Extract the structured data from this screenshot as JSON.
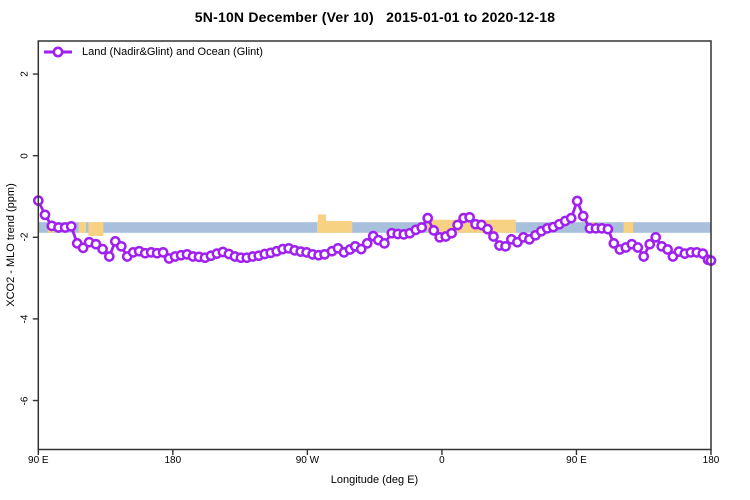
{
  "chart_data": {
    "type": "line",
    "title": "5N-10N December (Ver 10)   2015-01-01 to 2020-12-18",
    "xlabel": "Longitude (deg E)",
    "ylabel": "XCO2 - MLO trend (ppm)",
    "xlim": [
      90,
      540
    ],
    "ylim": [
      -7.2,
      2.81
    ],
    "grid": false,
    "legend_position": "top-left-inside",
    "x_ticks": [
      {
        "x": 90,
        "label": "90 E"
      },
      {
        "x": 180,
        "label": "180"
      },
      {
        "x": 270,
        "label": "90 W"
      },
      {
        "x": 360,
        "label": "0"
      },
      {
        "x": 450,
        "label": "90 E"
      },
      {
        "x": 540,
        "label": "180"
      }
    ],
    "y_ticks": [
      {
        "y": 2,
        "label": "2"
      },
      {
        "y": 0,
        "label": "0"
      },
      {
        "y": -2,
        "label": "-2"
      },
      {
        "y": -4,
        "label": "-4"
      },
      {
        "y": -6,
        "label": "-6"
      }
    ],
    "legend": [
      {
        "label": "Land (Nadir&Glint) and Ocean (Glint)",
        "color": "#A020F0",
        "marker": "open-circle-on-line"
      }
    ],
    "map_band": {
      "description": "ocean/land strip for 5N-10N latitude band",
      "ocean_color": "#A9C0DC",
      "land_color": "#F8D283",
      "y_top": -1.63,
      "y_bottom": -1.89,
      "land_segments": [
        {
          "from": 96.5,
          "to": 100.5
        },
        {
          "from": 117,
          "to": 122
        },
        {
          "from": 123.5,
          "to": 133.5,
          "bottom": -1.97
        },
        {
          "from": 276.5,
          "to": 300,
          "top": -1.6
        },
        {
          "from": 277,
          "to": 282.5,
          "top": -1.44
        },
        {
          "from": 350,
          "to": 409.5,
          "top": -1.57
        },
        {
          "from": 460,
          "to": 462.5
        },
        {
          "from": 481.5,
          "to": 488
        }
      ]
    },
    "series": [
      {
        "name": "Land (Nadir&Glint) and Ocean (Glint)",
        "color": "#A020F0",
        "marker_fill": "#FFFFFF",
        "points": [
          [
            90,
            -1.1
          ],
          [
            94.5,
            -1.45
          ],
          [
            99,
            -1.72
          ],
          [
            103.5,
            -1.76
          ],
          [
            108,
            -1.76
          ],
          [
            112,
            -1.73
          ],
          [
            116,
            -2.15
          ],
          [
            120,
            -2.26
          ],
          [
            124,
            -2.12
          ],
          [
            128.5,
            -2.17
          ],
          [
            133,
            -2.29
          ],
          [
            137.5,
            -2.47
          ],
          [
            141.5,
            -2.1
          ],
          [
            145.5,
            -2.22
          ],
          [
            149.5,
            -2.47
          ],
          [
            153.5,
            -2.37
          ],
          [
            157.5,
            -2.34
          ],
          [
            161.5,
            -2.39
          ],
          [
            165.5,
            -2.37
          ],
          [
            169.5,
            -2.39
          ],
          [
            173.5,
            -2.37
          ],
          [
            177.5,
            -2.52
          ],
          [
            181.5,
            -2.47
          ],
          [
            185.5,
            -2.44
          ],
          [
            189.5,
            -2.42
          ],
          [
            193.5,
            -2.47
          ],
          [
            197.5,
            -2.48
          ],
          [
            201.5,
            -2.5
          ],
          [
            205.5,
            -2.45
          ],
          [
            209.5,
            -2.4
          ],
          [
            213.5,
            -2.36
          ],
          [
            217.5,
            -2.41
          ],
          [
            221.5,
            -2.47
          ],
          [
            225.5,
            -2.5
          ],
          [
            229.5,
            -2.5
          ],
          [
            233.5,
            -2.47
          ],
          [
            237.5,
            -2.45
          ],
          [
            241.5,
            -2.41
          ],
          [
            245.5,
            -2.38
          ],
          [
            249.5,
            -2.34
          ],
          [
            253.5,
            -2.29
          ],
          [
            257.5,
            -2.27
          ],
          [
            261.5,
            -2.32
          ],
          [
            265.5,
            -2.35
          ],
          [
            269.5,
            -2.37
          ],
          [
            273.5,
            -2.42
          ],
          [
            277.5,
            -2.44
          ],
          [
            281.5,
            -2.42
          ],
          [
            286.5,
            -2.34
          ],
          [
            290.5,
            -2.27
          ],
          [
            294.5,
            -2.37
          ],
          [
            298.5,
            -2.3
          ],
          [
            302,
            -2.22
          ],
          [
            306,
            -2.29
          ],
          [
            310,
            -2.15
          ],
          [
            314,
            -1.97
          ],
          [
            317.5,
            -2.07
          ],
          [
            321.5,
            -2.15
          ],
          [
            326.5,
            -1.9
          ],
          [
            330.5,
            -1.92
          ],
          [
            334.5,
            -1.93
          ],
          [
            338.5,
            -1.9
          ],
          [
            342.5,
            -1.82
          ],
          [
            346.5,
            -1.76
          ],
          [
            350.5,
            -1.53
          ],
          [
            354.5,
            -1.83
          ],
          [
            358.5,
            -2.0
          ],
          [
            362.5,
            -1.98
          ],
          [
            366.5,
            -1.9
          ],
          [
            370.5,
            -1.7
          ],
          [
            374.5,
            -1.53
          ],
          [
            378.5,
            -1.51
          ],
          [
            382.5,
            -1.68
          ],
          [
            386.5,
            -1.7
          ],
          [
            390.5,
            -1.8
          ],
          [
            394.5,
            -1.98
          ],
          [
            398.5,
            -2.2
          ],
          [
            402.5,
            -2.22
          ],
          [
            406.5,
            -2.05
          ],
          [
            410.5,
            -2.12
          ],
          [
            414.5,
            -2.0
          ],
          [
            418.5,
            -2.05
          ],
          [
            422.5,
            -1.95
          ],
          [
            426.5,
            -1.85
          ],
          [
            430.5,
            -1.78
          ],
          [
            434.5,
            -1.75
          ],
          [
            438.5,
            -1.68
          ],
          [
            442.5,
            -1.6
          ],
          [
            446.5,
            -1.53
          ],
          [
            450.5,
            -1.11
          ],
          [
            454.5,
            -1.48
          ],
          [
            459,
            -1.78
          ],
          [
            463,
            -1.78
          ],
          [
            467,
            -1.78
          ],
          [
            471,
            -1.8
          ],
          [
            475,
            -2.15
          ],
          [
            479,
            -2.3
          ],
          [
            483,
            -2.25
          ],
          [
            487,
            -2.17
          ],
          [
            491,
            -2.25
          ],
          [
            495,
            -2.47
          ],
          [
            499,
            -2.17
          ],
          [
            503,
            -2.0
          ],
          [
            507,
            -2.22
          ],
          [
            511,
            -2.3
          ],
          [
            514.5,
            -2.47
          ],
          [
            518.5,
            -2.35
          ],
          [
            522.5,
            -2.4
          ],
          [
            526.5,
            -2.37
          ],
          [
            530.5,
            -2.37
          ],
          [
            534.5,
            -2.4
          ],
          [
            538,
            -2.55
          ],
          [
            540,
            -2.57
          ]
        ]
      }
    ]
  }
}
